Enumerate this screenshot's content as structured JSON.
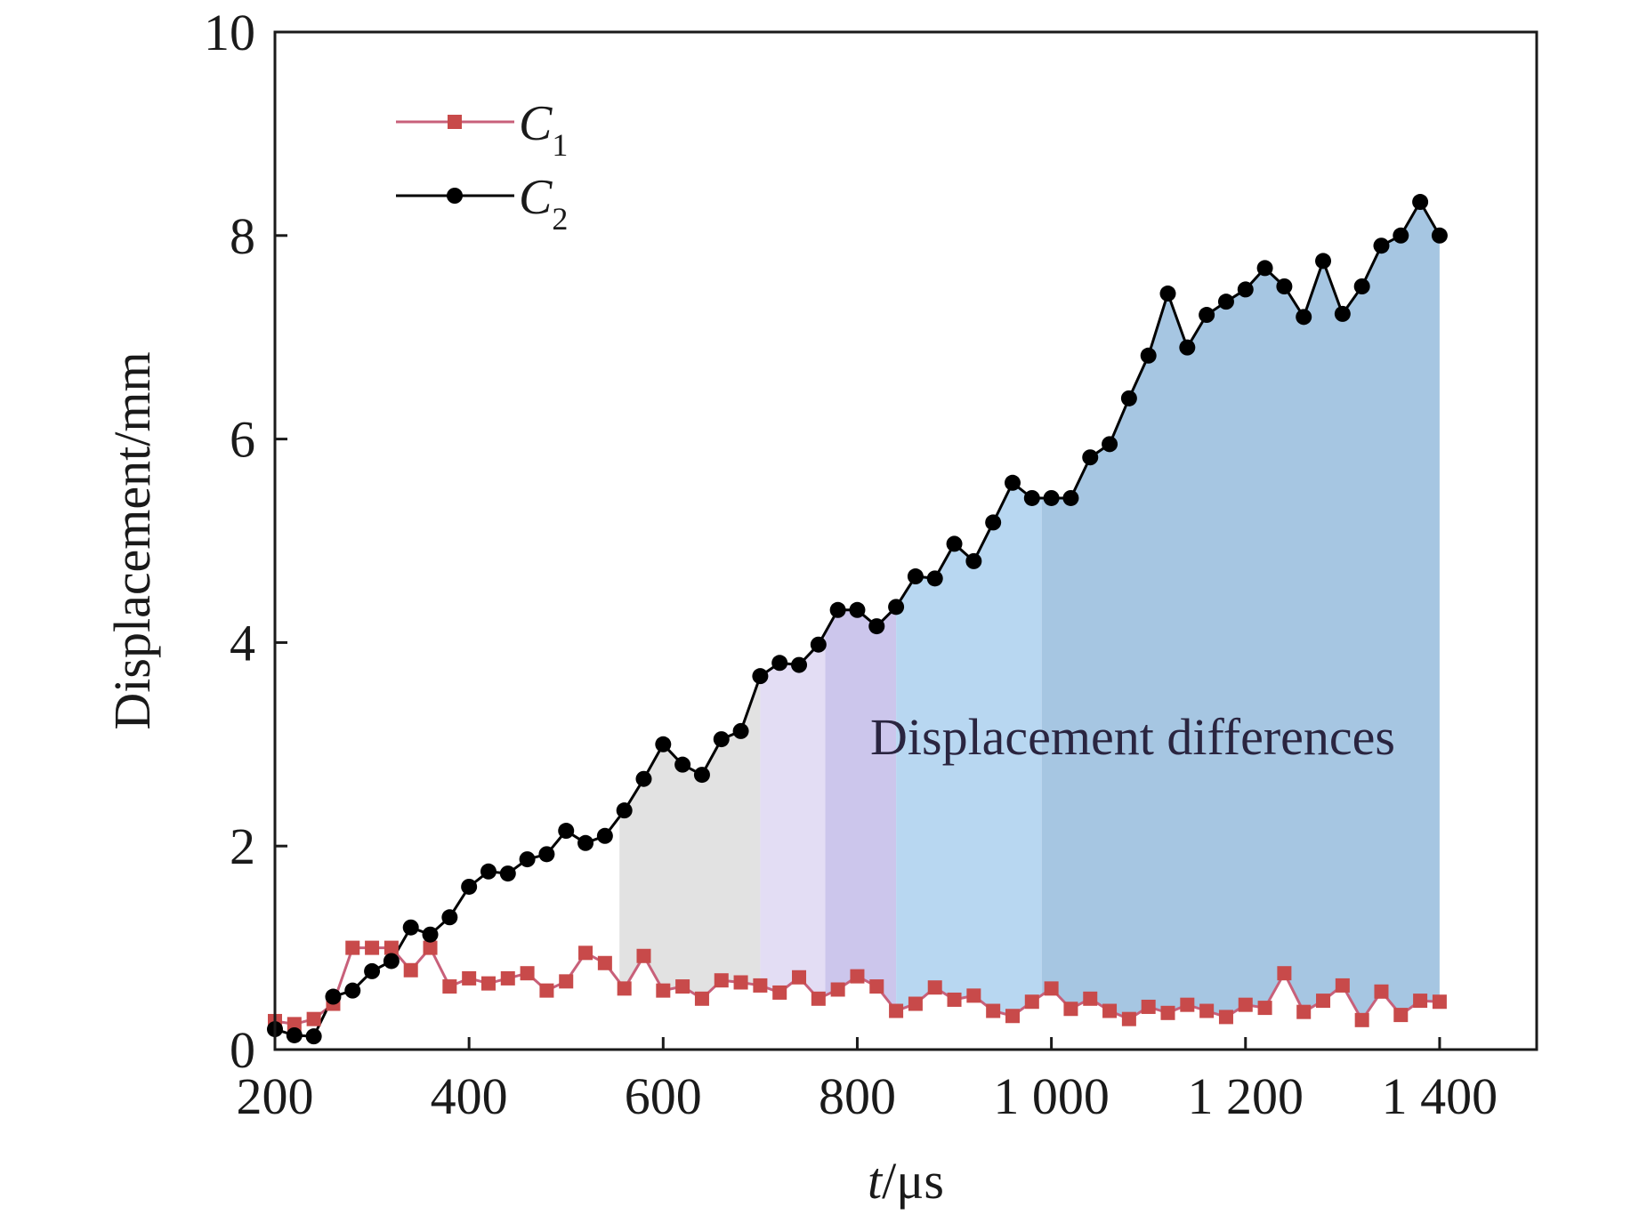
{
  "chart_data": {
    "type": "line",
    "xlabel_italic": "t",
    "xlabel_unit": "/μs",
    "ylabel": "Displacement/mm",
    "xlim": [
      200,
      1500
    ],
    "ylim": [
      0,
      10
    ],
    "x_ticks": [
      200,
      400,
      600,
      800,
      1000,
      1200,
      1400
    ],
    "x_tick_labels": [
      "200",
      "400",
      "600",
      "800",
      "1 000",
      "1 200",
      "1 400"
    ],
    "y_ticks": [
      0,
      2,
      4,
      6,
      8,
      10
    ],
    "y_tick_labels": [
      "0",
      "2",
      "4",
      "6",
      "8",
      "10"
    ],
    "grid": false,
    "legend_position": "top-left",
    "annotation": "Displacement differences",
    "x": [
      200,
      220,
      240,
      260,
      280,
      300,
      320,
      340,
      360,
      380,
      400,
      420,
      440,
      460,
      480,
      500,
      520,
      540,
      560,
      580,
      600,
      620,
      640,
      660,
      680,
      700,
      720,
      740,
      760,
      780,
      800,
      820,
      840,
      860,
      880,
      900,
      920,
      940,
      960,
      980,
      1000,
      1020,
      1040,
      1060,
      1080,
      1100,
      1120,
      1140,
      1160,
      1180,
      1200,
      1220,
      1240,
      1260,
      1280,
      1300,
      1320,
      1340,
      1360,
      1380,
      1400
    ],
    "series": [
      {
        "name": "C",
        "name_sub": "1",
        "color": "#c84a4a",
        "line_color": "#c8607a",
        "marker": "square",
        "values": [
          0.28,
          0.25,
          0.3,
          0.45,
          1.0,
          1.0,
          1.0,
          0.78,
          1.0,
          0.62,
          0.7,
          0.65,
          0.7,
          0.75,
          0.58,
          0.67,
          0.95,
          0.85,
          0.6,
          0.92,
          0.58,
          0.62,
          0.5,
          0.68,
          0.66,
          0.63,
          0.56,
          0.71,
          0.5,
          0.59,
          0.72,
          0.62,
          0.38,
          0.45,
          0.61,
          0.49,
          0.53,
          0.38,
          0.33,
          0.47,
          0.6,
          0.4,
          0.5,
          0.38,
          0.3,
          0.42,
          0.36,
          0.44,
          0.38,
          0.32,
          0.44,
          0.41,
          0.75,
          0.37,
          0.48,
          0.63,
          0.29,
          0.57,
          0.34,
          0.48,
          0.47
        ]
      },
      {
        "name": "C",
        "name_sub": "2",
        "color": "#000000",
        "line_color": "#000000",
        "marker": "circle",
        "values": [
          0.2,
          0.14,
          0.13,
          0.52,
          0.58,
          0.77,
          0.87,
          1.2,
          1.13,
          1.3,
          1.6,
          1.75,
          1.73,
          1.87,
          1.92,
          2.15,
          2.03,
          2.1,
          2.35,
          2.66,
          3.0,
          2.8,
          2.7,
          3.05,
          3.13,
          3.67,
          3.8,
          3.78,
          3.98,
          4.32,
          4.32,
          4.16,
          4.35,
          4.65,
          4.63,
          4.97,
          4.8,
          5.18,
          5.57,
          5.42,
          5.42,
          5.42,
          5.82,
          5.95,
          6.4,
          6.82,
          7.43,
          6.9,
          7.22,
          7.35,
          7.47,
          7.68,
          7.5,
          7.2,
          7.75,
          7.23,
          7.5,
          7.9,
          8.0,
          8.33,
          8.0
        ]
      }
    ],
    "shaded_bands": [
      {
        "x_start": 555,
        "x_end": 700,
        "color": "#e2e2e2"
      },
      {
        "x_start": 700,
        "x_end": 767,
        "color": "#e3ddf4"
      },
      {
        "x_start": 767,
        "x_end": 840,
        "color": "#ccc6ec"
      },
      {
        "x_start": 840,
        "x_end": 990,
        "color": "#b8d7f1"
      },
      {
        "x_start": 990,
        "x_end": 1400,
        "color": "#a6c6e2"
      }
    ]
  }
}
